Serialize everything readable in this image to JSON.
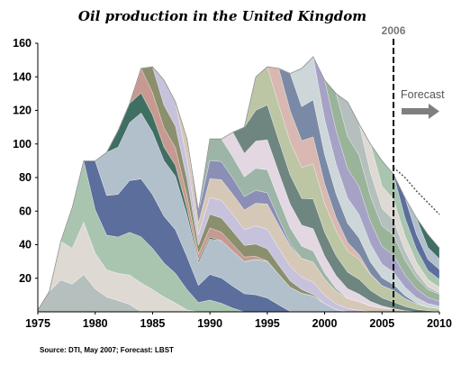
{
  "chart_data": {
    "type": "area",
    "stacked": true,
    "title": "Oil production in the United Kingdom",
    "xlim": [
      1975,
      2010
    ],
    "ylim": [
      0,
      160
    ],
    "x_ticks": [
      1975,
      1980,
      1985,
      1990,
      1995,
      2000,
      2005,
      2010
    ],
    "y_ticks": [
      20,
      40,
      60,
      80,
      100,
      120,
      140,
      160
    ],
    "x": [
      1975,
      1976,
      1977,
      1978,
      1979,
      1980,
      1981,
      1982,
      1983,
      1984,
      1985,
      1986,
      1987,
      1988,
      1989,
      1990,
      1991,
      1992,
      1993,
      1994,
      1995,
      1996,
      1997,
      1998,
      1999,
      2000,
      2001,
      2002,
      2003,
      2004,
      2005,
      2006,
      2007,
      2008,
      2009,
      2010
    ],
    "total": [
      1,
      12,
      42,
      62,
      90,
      90,
      95,
      108,
      124,
      145,
      146,
      138,
      125,
      103,
      60,
      103,
      103,
      107,
      110,
      140,
      146,
      145,
      142,
      145,
      152,
      138,
      130,
      125,
      112,
      100,
      90,
      82,
      68,
      56,
      46,
      38
    ],
    "forecast_line": {
      "x": [
        2006,
        2007,
        2008,
        2009,
        2010
      ],
      "values": [
        86,
        80,
        72,
        65,
        58
      ]
    },
    "marker": {
      "x": 2006,
      "label": "2006"
    },
    "forecast_label": "Forecast",
    "source": "Source: DTI, May 2007; Forecast: LBST"
  }
}
